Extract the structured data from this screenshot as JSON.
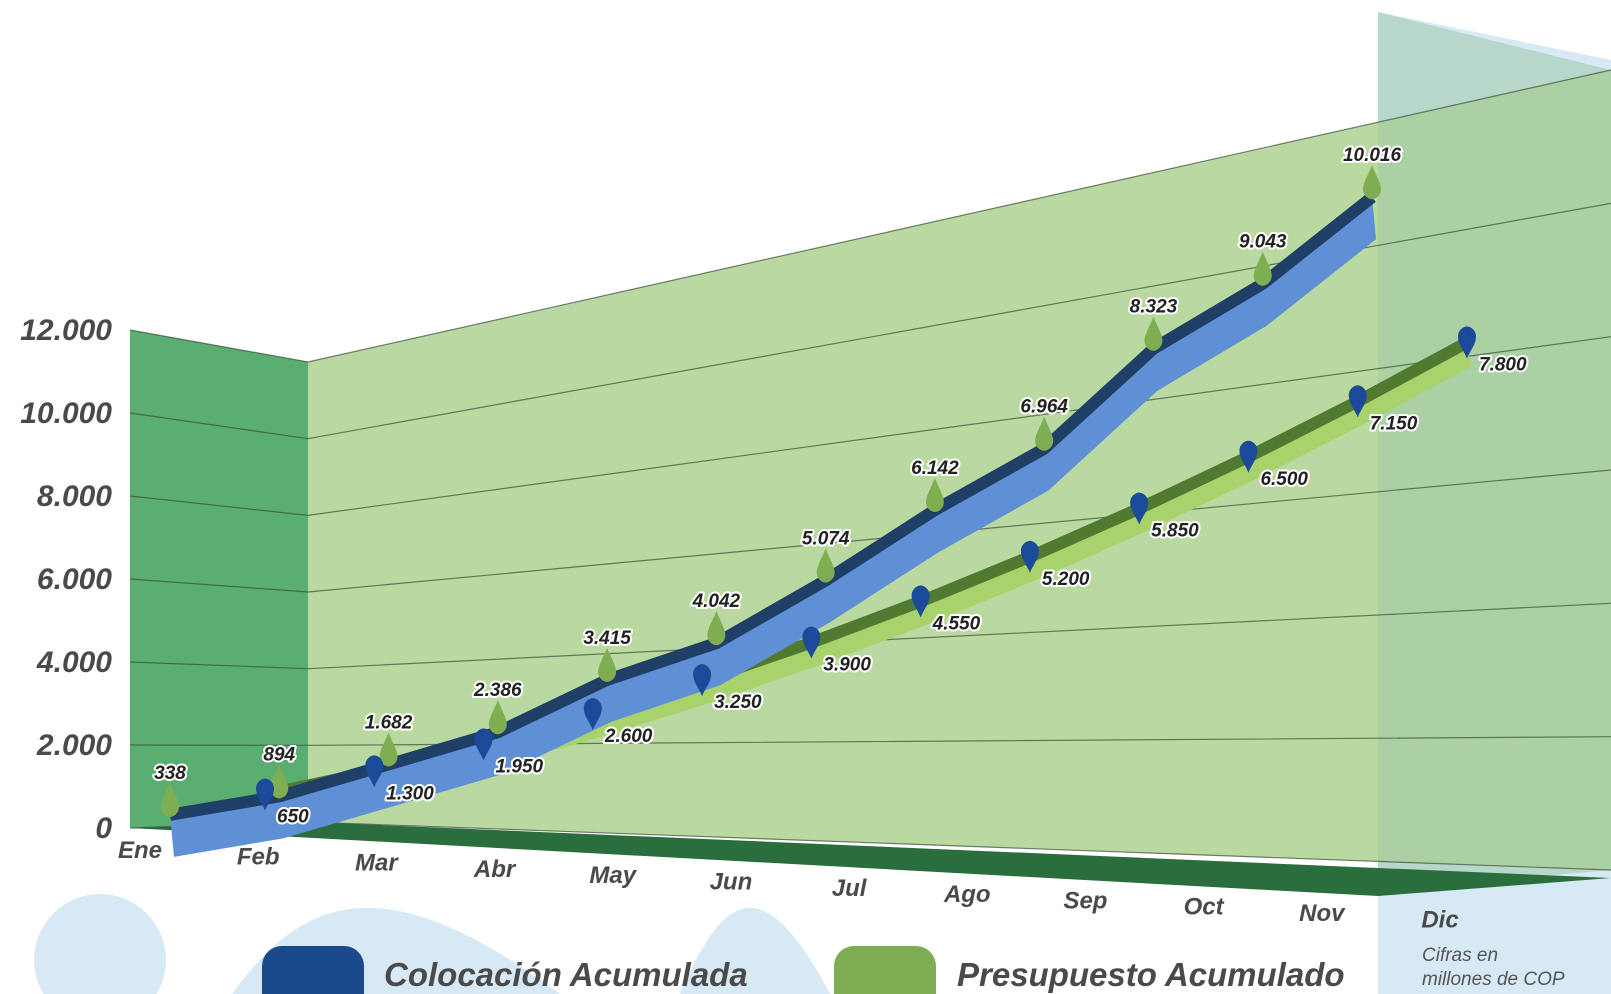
{
  "chart_data": {
    "type": "line",
    "categories": [
      "Ene",
      "Feb",
      "Mar",
      "Abr",
      "May",
      "Jun",
      "Jul",
      "Ago",
      "Sep",
      "Oct",
      "Nov",
      "Dic"
    ],
    "series": [
      {
        "name": "Colocación Acumulada",
        "color": "#1b4a8a",
        "values": [
          338,
          894,
          1682,
          2386,
          3415,
          4042,
          5074,
          6142,
          6964,
          8323,
          9043,
          10016
        ],
        "labels": [
          "338",
          "894",
          "1.682",
          "2.386",
          "3.415",
          "4.042",
          "5.074",
          "6.142",
          "6.964",
          "8.323",
          "9.043",
          "10.016"
        ]
      },
      {
        "name": "Presupuesto Acumulado",
        "color": "#7fae52",
        "values": [
          650,
          1300,
          1950,
          2600,
          3250,
          3900,
          4550,
          5200,
          5850,
          6500,
          7150,
          7800
        ],
        "labels": [
          "650",
          "1.300",
          "1.950",
          "2.600",
          "3.250",
          "3.900",
          "4.550",
          "5.200",
          "5.850",
          "6.500",
          "7.150",
          "7.800"
        ]
      }
    ],
    "ylim": [
      0,
      12000
    ],
    "yticks": [
      0,
      2000,
      4000,
      6000,
      8000,
      10000,
      12000
    ],
    "ytick_labels": [
      "0",
      "2.000",
      "4.000",
      "6.000",
      "8.000",
      "10.000",
      "12.000"
    ],
    "grid": true,
    "legend_position": "bottom",
    "note": [
      "Cifras en",
      "millones de COP"
    ],
    "colors": {
      "back_wall": "#b9d9a0",
      "left_wall": "#5aae72",
      "floor": "#2a6e3e",
      "decoration": "#d8e9f6",
      "colocacion_top": "#1f3f66",
      "colocacion_face": "#5f8fd4",
      "presupuesto_top": "#4f7a30",
      "presupuesto_face": "#a8d26c",
      "marker_colocacion": "#7fae52",
      "marker_presupuesto": "#1b4a9a"
    }
  }
}
